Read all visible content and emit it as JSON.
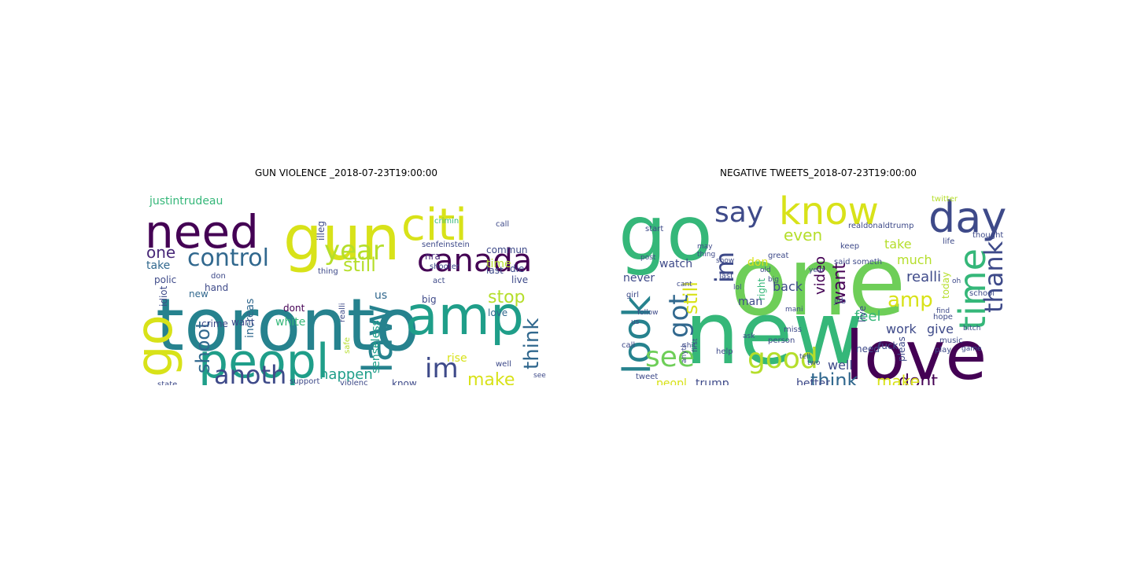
{
  "figure": {
    "left_title": "GUN VIOLENCE _2018-07-23T19:00:00",
    "right_title": "NEGATIVE TWEETS_2018-07-23T19:00:00"
  },
  "palette": [
    "#440154",
    "#482878",
    "#3e4a89",
    "#31688e",
    "#26828e",
    "#1f9e89",
    "#35b779",
    "#6ece58",
    "#b5de2b",
    "#d8e219"
  ],
  "clouds": {
    "left": [
      {
        "t": "toronto",
        "c": "#26828e"
      },
      {
        "t": "gun",
        "c": "#d8e219"
      },
      {
        "t": "peopl",
        "c": "#1f9e89"
      },
      {
        "t": "amp",
        "c": "#1f9e89"
      },
      {
        "t": "need",
        "c": "#440154"
      },
      {
        "t": "citi",
        "c": "#d8e219"
      },
      {
        "t": "go",
        "c": "#d8e219"
      },
      {
        "t": "canada",
        "c": "#440154"
      },
      {
        "t": "law",
        "c": "#26828e"
      },
      {
        "t": "anoth",
        "c": "#3e4a89"
      },
      {
        "t": "control",
        "c": "#31688e"
      },
      {
        "t": "year",
        "c": "#b5de2b"
      },
      {
        "t": "im",
        "c": "#3e4a89"
      },
      {
        "t": "still",
        "c": "#b5de2b"
      },
      {
        "t": "shoot",
        "c": "#31688e"
      },
      {
        "t": "stop",
        "c": "#b5de2b"
      },
      {
        "t": "think",
        "c": "#31688e"
      },
      {
        "t": "one",
        "c": "#482878"
      },
      {
        "t": "make",
        "c": "#d8e219"
      },
      {
        "t": "happen",
        "c": "#1f9e89"
      },
      {
        "t": "us",
        "c": "#31688e"
      },
      {
        "t": "time",
        "c": "#b5de2b"
      },
      {
        "t": "take",
        "c": "#31688e"
      },
      {
        "t": "justintrudeau",
        "c": "#35b779"
      },
      {
        "t": "nra",
        "c": "#482878"
      },
      {
        "t": "senseless",
        "c": "#1f9e89"
      },
      {
        "t": "increas",
        "c": "#31688e"
      },
      {
        "t": "rise",
        "c": "#d8e219"
      },
      {
        "t": "white",
        "c": "#35b779"
      },
      {
        "t": "want",
        "c": "#3e4a89"
      },
      {
        "t": "crime",
        "c": "#3e4a89"
      },
      {
        "t": "new",
        "c": "#31688e"
      },
      {
        "t": "polic",
        "c": "#3e4a89"
      },
      {
        "t": "idiot",
        "c": "#3e4a89"
      },
      {
        "t": "illeg",
        "c": "#3e4a89"
      },
      {
        "t": "commun",
        "c": "#3e4a89"
      },
      {
        "t": "love",
        "c": "#31688e"
      },
      {
        "t": "dont",
        "c": "#440154"
      },
      {
        "t": "hand",
        "c": "#3e4a89"
      },
      {
        "t": "know",
        "c": "#3e4a89"
      },
      {
        "t": "live",
        "c": "#3e4a89"
      },
      {
        "t": "big",
        "c": "#3e4a89"
      },
      {
        "t": "die",
        "c": "#3e4a89"
      },
      {
        "t": "last",
        "c": "#3e4a89"
      },
      {
        "t": "act",
        "c": "#3e4a89"
      },
      {
        "t": "call",
        "c": "#3e4a89"
      },
      {
        "t": "crimin",
        "c": "#35b779"
      },
      {
        "t": "shooter",
        "c": "#3e4a89"
      },
      {
        "t": "senfeinstein",
        "c": "#3e4a89"
      },
      {
        "t": "safe",
        "c": "#b5de2b"
      },
      {
        "t": "realli",
        "c": "#3e4a89"
      },
      {
        "t": "support",
        "c": "#3e4a89"
      },
      {
        "t": "violenc",
        "c": "#3e4a89"
      },
      {
        "t": "state",
        "c": "#3e4a89"
      },
      {
        "t": "thing",
        "c": "#3e4a89"
      },
      {
        "t": "don",
        "c": "#3e4a89"
      },
      {
        "t": "well",
        "c": "#3e4a89"
      },
      {
        "t": "see",
        "c": "#3e4a89"
      }
    ],
    "right": [
      {
        "t": "one",
        "c": "#6ece58"
      },
      {
        "t": "new",
        "c": "#35b779"
      },
      {
        "t": "go",
        "c": "#35b779"
      },
      {
        "t": "love",
        "c": "#440154"
      },
      {
        "t": "day",
        "c": "#3e4a89"
      },
      {
        "t": "know",
        "c": "#d8e219"
      },
      {
        "t": "look",
        "c": "#26828e"
      },
      {
        "t": "time",
        "c": "#35b779"
      },
      {
        "t": "say",
        "c": "#3e4a89"
      },
      {
        "t": "good",
        "c": "#b5de2b"
      },
      {
        "t": "see",
        "c": "#6ece58"
      },
      {
        "t": "thank",
        "c": "#3e4a89"
      },
      {
        "t": "got",
        "c": "#31688e"
      },
      {
        "t": "im",
        "c": "#3e4a89"
      },
      {
        "t": "think",
        "c": "#31688e"
      },
      {
        "t": "amp",
        "c": "#d8e219"
      },
      {
        "t": "still",
        "c": "#d8e219"
      },
      {
        "t": "dont",
        "c": "#440154"
      },
      {
        "t": "make",
        "c": "#d8e219"
      },
      {
        "t": "want",
        "c": "#440154"
      },
      {
        "t": "even",
        "c": "#b5de2b"
      },
      {
        "t": "feel",
        "c": "#35b779"
      },
      {
        "t": "realli",
        "c": "#3e4a89"
      },
      {
        "t": "video",
        "c": "#440154"
      },
      {
        "t": "work",
        "c": "#3e4a89"
      },
      {
        "t": "give",
        "c": "#3e4a89"
      },
      {
        "t": "take",
        "c": "#b5de2b"
      },
      {
        "t": "much",
        "c": "#b5de2b"
      },
      {
        "t": "well",
        "c": "#3e4a89"
      },
      {
        "t": "better",
        "c": "#3e4a89"
      },
      {
        "t": "trump",
        "c": "#3e4a89"
      },
      {
        "t": "peopl",
        "c": "#d8e219"
      },
      {
        "t": "never",
        "c": "#3e4a89"
      },
      {
        "t": "watch",
        "c": "#3e4a89"
      },
      {
        "t": "back",
        "c": "#3e4a89"
      },
      {
        "t": "man",
        "c": "#3e4a89"
      },
      {
        "t": "don",
        "c": "#d8e219"
      },
      {
        "t": "need",
        "c": "#3e4a89"
      },
      {
        "t": "live",
        "c": "#3e4a89"
      },
      {
        "t": "pleas",
        "c": "#3e4a89"
      },
      {
        "t": "today",
        "c": "#b5de2b"
      },
      {
        "t": "fuck",
        "c": "#3e4a89"
      },
      {
        "t": "right",
        "c": "#35b779"
      },
      {
        "t": "tweet",
        "c": "#3e4a89"
      },
      {
        "t": "call",
        "c": "#3e4a89"
      },
      {
        "t": "help",
        "c": "#3e4a89"
      },
      {
        "t": "thought",
        "c": "#3e4a89"
      },
      {
        "t": "school",
        "c": "#3e4a89"
      },
      {
        "t": "life",
        "c": "#3e4a89"
      },
      {
        "t": "music",
        "c": "#3e4a89"
      },
      {
        "t": "twitter",
        "c": "#b5de2b"
      },
      {
        "t": "realdonaldtrump",
        "c": "#3e4a89"
      },
      {
        "t": "great",
        "c": "#3e4a89"
      },
      {
        "t": "miss",
        "c": "#3e4a89"
      },
      {
        "t": "girl",
        "c": "#3e4a89"
      },
      {
        "t": "start",
        "c": "#3e4a89"
      },
      {
        "t": "person",
        "c": "#3e4a89"
      },
      {
        "t": "play",
        "c": "#3e4a89"
      },
      {
        "t": "hope",
        "c": "#3e4a89"
      },
      {
        "t": "job",
        "c": "#3e4a89"
      },
      {
        "t": "said someth",
        "c": "#3e4a89"
      },
      {
        "t": "keep",
        "c": "#3e4a89"
      },
      {
        "t": "last",
        "c": "#3e4a89"
      },
      {
        "t": "lol",
        "c": "#3e4a89"
      },
      {
        "t": "two",
        "c": "#3e4a89"
      },
      {
        "t": "tell",
        "c": "#3e4a89"
      },
      {
        "t": "find",
        "c": "#3e4a89"
      },
      {
        "t": "game",
        "c": "#3e4a89"
      },
      {
        "t": "cant",
        "c": "#3e4a89"
      },
      {
        "t": "year",
        "c": "#3e4a89"
      },
      {
        "t": "oh",
        "c": "#3e4a89"
      },
      {
        "t": "show",
        "c": "#3e4a89"
      },
      {
        "t": "mani",
        "c": "#3e4a89"
      },
      {
        "t": "old",
        "c": "#3e4a89"
      },
      {
        "t": "first",
        "c": "#3e4a89"
      },
      {
        "t": "anyth",
        "c": "#3e4a89"
      },
      {
        "t": "shit",
        "c": "#3e4a89"
      },
      {
        "t": "ask",
        "c": "#3e4a89"
      },
      {
        "t": "follow",
        "c": "#3e4a89"
      },
      {
        "t": "us",
        "c": "#3e4a89"
      },
      {
        "t": "may",
        "c": "#3e4a89"
      },
      {
        "t": "thing",
        "c": "#3e4a89"
      },
      {
        "t": "big",
        "c": "#3e4a89"
      },
      {
        "t": "post",
        "c": "#3e4a89"
      },
      {
        "t": "bitch",
        "c": "#3e4a89"
      }
    ]
  }
}
